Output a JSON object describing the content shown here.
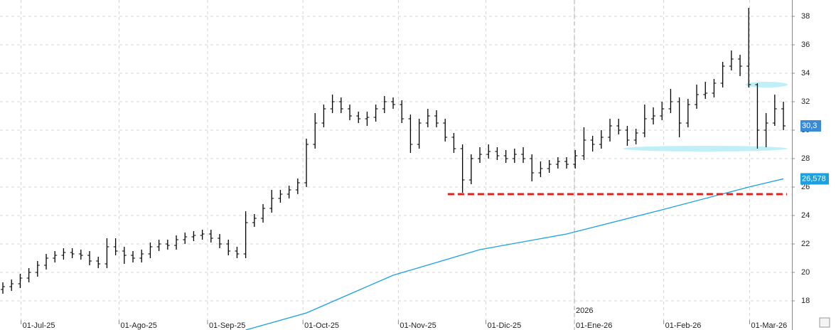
{
  "chart_data": {
    "type": "ohlc",
    "ylim": [
      15.95,
      39.15
    ],
    "yticks": [
      18,
      20,
      22,
      24,
      26,
      28,
      30,
      32,
      34,
      36,
      38
    ],
    "xlim": [
      -0.33,
      90.98
    ],
    "xticks": [
      {
        "value": 2.1,
        "label": "01-Jul-25"
      },
      {
        "value": 13.4,
        "label": "01-Ago-25"
      },
      {
        "value": 23.6,
        "label": "01-Sep-25"
      },
      {
        "value": 34.6,
        "label": "01-Oct-25"
      },
      {
        "value": 45.6,
        "label": "01-Nov-25"
      },
      {
        "value": 55.7,
        "label": "01-Dic-25"
      },
      {
        "value": 65.9,
        "label": "01-Ene-26"
      },
      {
        "value": 76.2,
        "label": "01-Feb-26"
      },
      {
        "value": 86.1,
        "label": "01-Mar-26"
      }
    ],
    "grid": true,
    "color": "#000000",
    "ohlc": {
      "open": [
        18.8,
        19.0,
        19.2,
        19.6,
        20.0,
        20.5,
        21.0,
        21.2,
        21.4,
        21.3,
        21.2,
        20.8,
        20.6,
        21.8,
        21.5,
        21.2,
        21.0,
        21.3,
        21.8,
        22.0,
        21.9,
        22.3,
        22.5,
        22.6,
        22.7,
        22.4,
        22.0,
        21.5,
        21.3,
        23.5,
        23.8,
        24.5,
        25.2,
        25.5,
        25.8,
        26.3,
        29.0,
        30.5,
        31.5,
        32.0,
        31.5,
        31.0,
        30.8,
        30.9,
        31.5,
        32.0,
        31.8,
        30.8,
        29.0,
        30.5,
        31.0,
        30.5,
        29.5,
        28.7,
        26.5,
        28.0,
        28.3,
        28.5,
        28.2,
        28.0,
        28.3,
        28.0,
        27.0,
        27.3,
        27.6,
        27.8,
        27.6,
        28.2,
        29.3,
        29.0,
        29.5,
        30.3,
        30.0,
        29.3,
        29.8,
        30.8,
        31.0,
        31.5,
        32.0,
        30.5,
        31.8,
        32.5,
        32.6,
        33.3,
        34.5,
        35.0,
        34.5,
        33.2,
        30.0,
        30.5,
        31.5
      ],
      "high": [
        19.3,
        19.5,
        19.9,
        20.3,
        20.8,
        21.3,
        21.5,
        21.7,
        21.7,
        21.6,
        21.5,
        21.1,
        22.4,
        22.4,
        21.8,
        21.5,
        21.6,
        22.1,
        22.3,
        22.3,
        22.6,
        22.8,
        22.9,
        23.0,
        23.0,
        22.7,
        22.3,
        21.8,
        24.3,
        24.1,
        24.8,
        25.8,
        25.8,
        26.1,
        26.6,
        29.4,
        31.2,
        31.8,
        32.5,
        32.3,
        31.8,
        31.3,
        31.3,
        31.8,
        32.4,
        32.3,
        32.1,
        31.1,
        30.8,
        31.5,
        31.4,
        30.8,
        29.8,
        29.0,
        28.3,
        28.8,
        29.0,
        28.8,
        28.6,
        28.7,
        28.8,
        28.3,
        27.8,
        27.9,
        28.1,
        28.1,
        28.6,
        30.2,
        29.6,
        30.0,
        30.8,
        30.8,
        30.3,
        30.1,
        31.8,
        31.6,
        32.0,
        32.9,
        32.3,
        32.2,
        33.2,
        33.4,
        33.6,
        34.8,
        35.6,
        35.3,
        38.6,
        33.3,
        31.2,
        32.5,
        32.0
      ],
      "low": [
        18.5,
        18.7,
        18.9,
        19.3,
        19.7,
        20.2,
        20.7,
        20.9,
        21.0,
        20.9,
        20.5,
        20.3,
        20.3,
        21.2,
        20.6,
        20.7,
        20.7,
        21.0,
        21.5,
        21.6,
        21.6,
        22.0,
        22.2,
        22.3,
        22.1,
        21.7,
        21.2,
        21.0,
        21.0,
        23.2,
        23.5,
        24.2,
        24.9,
        25.2,
        25.5,
        26.0,
        28.7,
        30.2,
        31.2,
        31.2,
        30.7,
        30.5,
        30.3,
        30.6,
        31.2,
        31.5,
        30.5,
        28.4,
        28.7,
        30.2,
        30.2,
        29.2,
        28.4,
        25.6,
        26.2,
        27.7,
        28.0,
        27.9,
        27.7,
        27.7,
        27.7,
        26.4,
        26.7,
        27.0,
        27.3,
        27.3,
        27.3,
        27.9,
        28.5,
        28.7,
        29.2,
        29.7,
        28.9,
        29.0,
        29.5,
        30.4,
        30.7,
        31.2,
        29.5,
        30.2,
        31.5,
        32.2,
        32.3,
        33.0,
        34.2,
        33.8,
        33.0,
        28.7,
        28.8,
        30.3,
        30.0
      ],
      "close": [
        19.0,
        19.2,
        19.6,
        20.0,
        20.5,
        21.0,
        21.2,
        21.4,
        21.3,
        21.2,
        20.8,
        20.6,
        21.8,
        21.5,
        21.2,
        21.0,
        21.3,
        21.8,
        22.0,
        21.9,
        22.3,
        22.5,
        22.6,
        22.7,
        22.4,
        22.0,
        21.5,
        21.3,
        23.5,
        23.8,
        24.5,
        25.2,
        25.5,
        25.8,
        26.3,
        29.0,
        30.5,
        31.5,
        32.0,
        31.5,
        31.0,
        30.8,
        30.9,
        31.5,
        32.0,
        31.8,
        30.8,
        29.0,
        30.5,
        31.0,
        30.5,
        29.5,
        28.7,
        26.5,
        28.0,
        28.3,
        28.5,
        28.2,
        28.0,
        28.3,
        28.0,
        27.0,
        27.3,
        27.6,
        27.8,
        27.6,
        28.2,
        29.3,
        29.0,
        29.5,
        30.3,
        30.0,
        29.3,
        29.8,
        30.8,
        31.0,
        31.5,
        32.0,
        30.5,
        31.8,
        32.5,
        32.6,
        33.3,
        34.5,
        35.0,
        34.5,
        33.2,
        30.0,
        30.5,
        31.5,
        30.3
      ]
    },
    "moving_average": {
      "color": "#1ba1e2",
      "x": [
        28,
        35,
        45,
        55,
        65,
        76,
        86,
        90
      ],
      "values": [
        15.95,
        17.15,
        19.8,
        21.6,
        22.7,
        24.4,
        26.0,
        26.578
      ]
    },
    "last_price": {
      "value": 30.3,
      "label": "30,3",
      "color": "#3a8ad6"
    },
    "ma_last": {
      "value": 26.578,
      "label": "26,578",
      "color": "#1ba1e2"
    },
    "year_marker": {
      "value": 65.9,
      "label": "2026"
    },
    "support": {
      "value": 25.5,
      "x": [
        51.3,
        90.4
      ],
      "color": "#e0201b"
    },
    "zones": [
      {
        "value": 33.2,
        "x": [
          85.6,
          90.5
        ]
      },
      {
        "value": 28.7,
        "x": [
          71.5,
          90.5
        ]
      }
    ],
    "zone_color": "#bff0f8"
  }
}
